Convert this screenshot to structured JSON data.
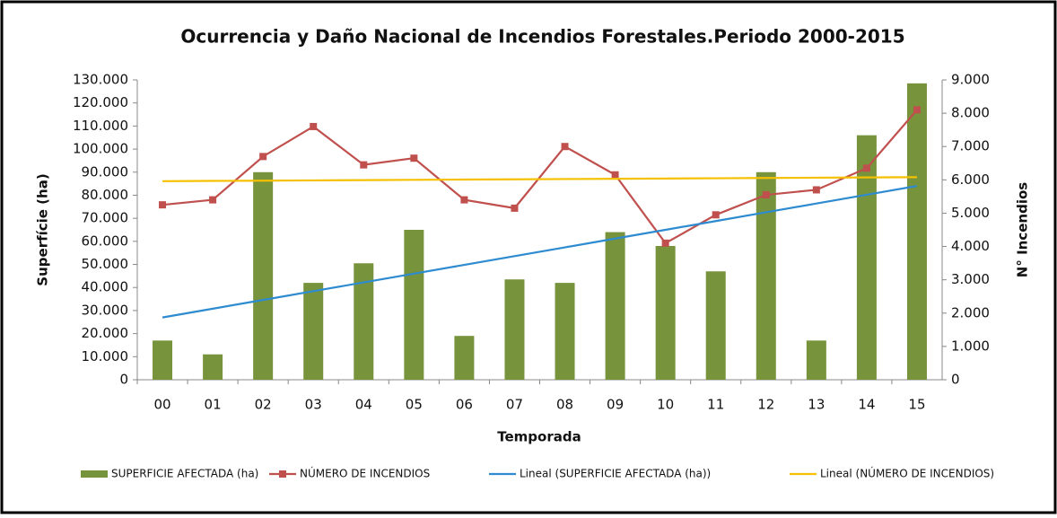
{
  "chart_data": {
    "type": "combo",
    "title": "Ocurrencia y Daño Nacional de Incendios Forestales.Periodo 2000-2015",
    "xlabel": "Temporada",
    "ylabel": "Superfície (ha)",
    "y2label": "N° Incendios",
    "categories": [
      "00",
      "01",
      "02",
      "03",
      "04",
      "05",
      "06",
      "07",
      "08",
      "09",
      "10",
      "11",
      "12",
      "13",
      "14",
      "15"
    ],
    "series": [
      {
        "name": "SUPERFICIE AFECTADA (ha)",
        "type": "bar",
        "axis": "y",
        "color": "#77933c",
        "values": [
          17000,
          11000,
          90000,
          42000,
          50500,
          65000,
          19000,
          43500,
          42000,
          64000,
          58000,
          47000,
          90000,
          17000,
          106000,
          128500
        ]
      },
      {
        "name": "NÚMERO  DE INCENDIOS",
        "type": "line",
        "axis": "y2",
        "color": "#c0504d",
        "marker": "square",
        "values": [
          5250,
          5400,
          6700,
          7600,
          6450,
          6650,
          5400,
          5150,
          7000,
          6150,
          4100,
          4950,
          5550,
          5700,
          6350,
          8100
        ]
      },
      {
        "name": "Lineal (SUPERFICIE AFECTADA (ha))",
        "type": "line",
        "axis": "y",
        "color": "#2e8bd0",
        "values": [
          27000,
          30800,
          34600,
          38400,
          42200,
          46000,
          49800,
          53600,
          57400,
          61200,
          65000,
          68800,
          72600,
          76400,
          80200,
          84000
        ]
      },
      {
        "name": "Lineal (NÚMERO  DE INCENDIOS)",
        "type": "line",
        "axis": "y2",
        "color": "#f5c000",
        "values": [
          5960,
          5968,
          5976,
          5984,
          5992,
          6000,
          6008,
          6016,
          6024,
          6032,
          6040,
          6048,
          6056,
          6064,
          6072,
          6080
        ]
      }
    ],
    "ylim": [
      0,
      130000
    ],
    "yticks": [
      0,
      {
        "value": 10000,
        "label": "10.000"
      },
      {
        "value": 20000,
        "label": "20.000"
      },
      {
        "value": 30000,
        "label": "30.000"
      },
      {
        "value": 40000,
        "label": "40.000"
      },
      {
        "value": 50000,
        "label": "50.000"
      },
      {
        "value": 60000,
        "label": "60.000"
      },
      {
        "value": 70000,
        "label": "70.000"
      },
      {
        "value": 80000,
        "label": "80.000"
      },
      {
        "value": 90000,
        "label": "90.000"
      },
      {
        "value": 100000,
        "label": "100.000"
      },
      {
        "value": 110000,
        "label": "110.000"
      },
      {
        "value": 120000,
        "label": "120.000"
      },
      {
        "value": 130000,
        "label": "130.000"
      }
    ],
    "y2lim": [
      0,
      9000
    ],
    "y2ticks": [
      0,
      {
        "value": 1000,
        "label": "1.000"
      },
      {
        "value": 2000,
        "label": "2.000"
      },
      {
        "value": 3000,
        "label": "3.000"
      },
      {
        "value": 4000,
        "label": "4.000"
      },
      {
        "value": 5000,
        "label": "5.000"
      },
      {
        "value": 6000,
        "label": "6.000"
      },
      {
        "value": 7000,
        "label": "7.000"
      },
      {
        "value": 8000,
        "label": "8.000"
      },
      {
        "value": 9000,
        "label": "9.000"
      }
    ],
    "grid": false,
    "legend": "bottom"
  }
}
